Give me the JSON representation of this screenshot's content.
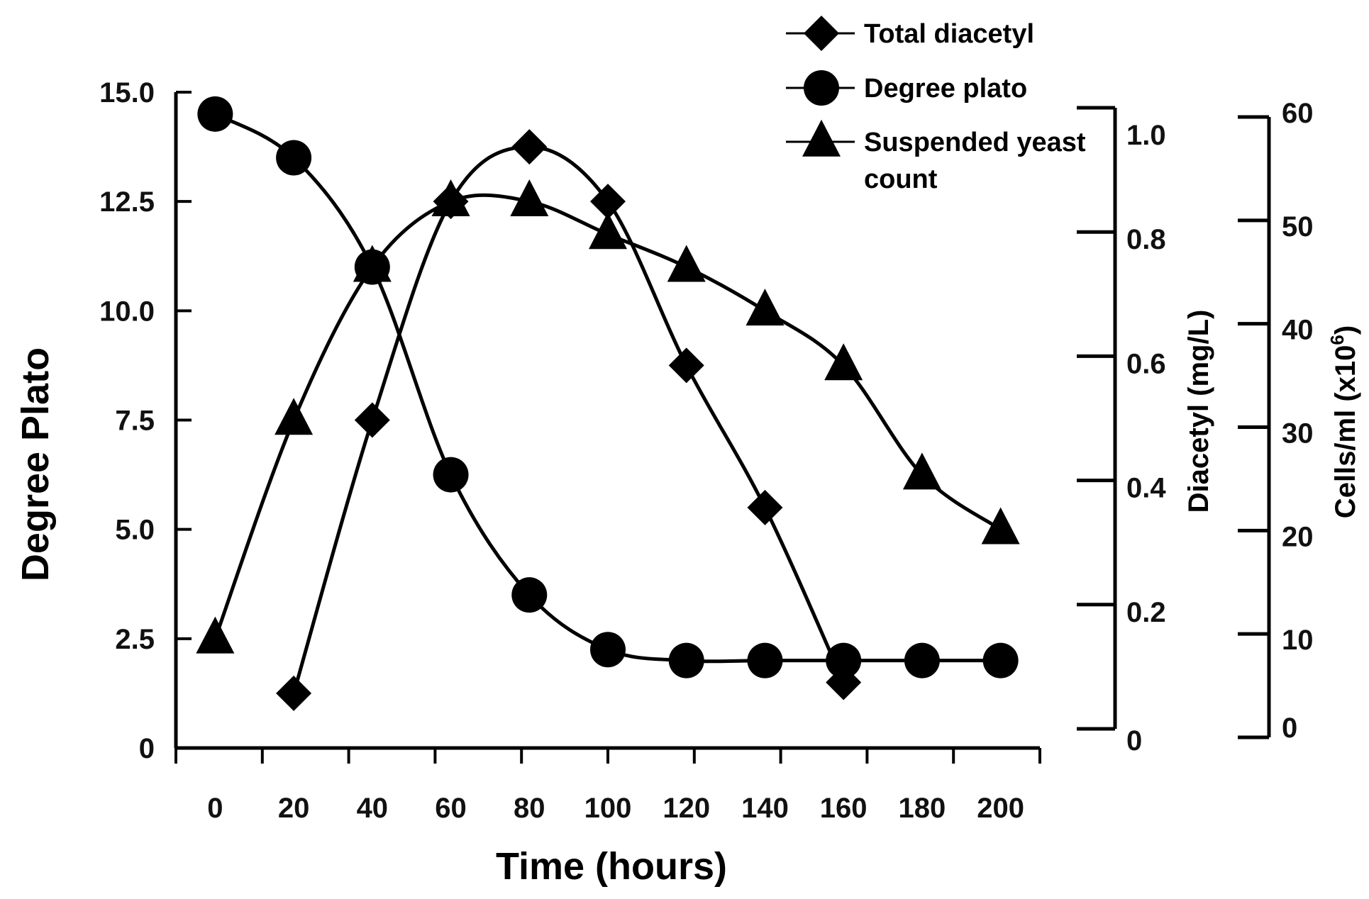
{
  "chart_data": {
    "type": "line",
    "xlabel": "Time (hours)",
    "x_ticks": [
      "0",
      "20",
      "40",
      "60",
      "80",
      "100",
      "120",
      "140",
      "160",
      "180",
      "200"
    ],
    "xlim": [
      -10,
      210
    ],
    "y_left": {
      "label": "Degree Plato",
      "ticks": [
        "0",
        "2.5",
        "5.0",
        "7.5",
        "10.0",
        "12.5",
        "15.0"
      ],
      "range": [
        0,
        15
      ]
    },
    "y_right_1": {
      "label": "Diacetyl (mg/L)",
      "ticks": [
        "0",
        "0.2",
        "0.4",
        "0.6",
        "0.8",
        "1.0"
      ],
      "range": [
        0,
        1.0
      ]
    },
    "y_right_2": {
      "label_main": "Cells/ml (x10",
      "label_sup": "6",
      "label_close": ")",
      "ticks": [
        "0",
        "10",
        "20",
        "30",
        "40",
        "50",
        "60"
      ],
      "range": [
        0,
        60
      ]
    },
    "series": [
      {
        "name": "Total diacetyl",
        "marker": "diamond",
        "x": [
          20,
          40,
          60,
          80,
          100,
          120,
          140,
          160
        ],
        "y_left_equiv": [
          1.25,
          7.5,
          12.5,
          13.75,
          12.5,
          8.75,
          5.5,
          1.5
        ]
      },
      {
        "name": "Degree plato",
        "marker": "circle",
        "x": [
          0,
          20,
          40,
          60,
          80,
          100,
          120,
          140,
          160,
          180,
          200
        ],
        "y_left_equiv": [
          14.5,
          13.5,
          11.0,
          6.25,
          3.5,
          2.25,
          2.0,
          2.0,
          2.0,
          2.0,
          2.0
        ]
      },
      {
        "name": "Suspended yeast count",
        "marker": "triangle",
        "x": [
          0,
          20,
          40,
          60,
          80,
          100,
          120,
          140,
          160,
          180,
          200
        ],
        "y_left_equiv": [
          2.5,
          7.5,
          11.0,
          12.5,
          12.5,
          11.75,
          11.0,
          10.0,
          8.75,
          6.25,
          5.0
        ]
      }
    ],
    "legend": {
      "position": "top-right",
      "items": [
        {
          "line1": "Total diacetyl",
          "line2": ""
        },
        {
          "line1": "Degree plato",
          "line2": ""
        },
        {
          "line1": "Suspended yeast",
          "line2": "count"
        }
      ]
    }
  }
}
